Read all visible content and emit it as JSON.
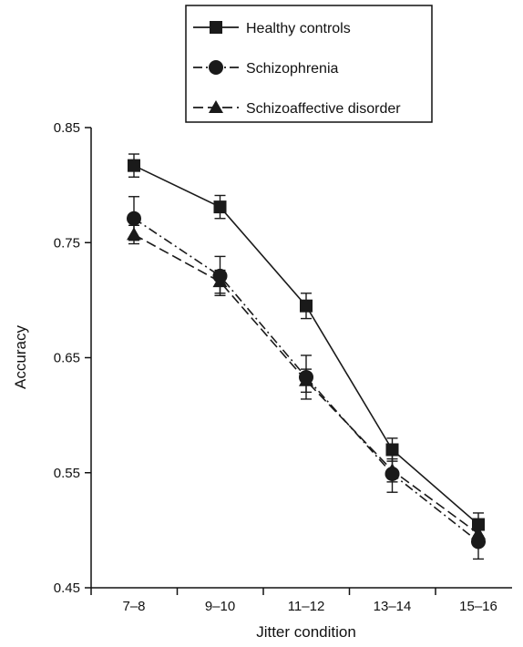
{
  "chart_data": {
    "type": "line",
    "categories": [
      "7–8",
      "9–10",
      "11–12",
      "13–14",
      "15–16"
    ],
    "xlabel": "Jitter condition",
    "ylabel": "Accuracy",
    "ylim": [
      0.45,
      0.85
    ],
    "yticks": [
      0.45,
      0.55,
      0.65,
      0.75,
      0.85
    ],
    "grid": false,
    "legend_position": "top-center",
    "series": [
      {
        "name": "Healthy controls",
        "marker": "square",
        "line": "solid",
        "values": [
          0.817,
          0.781,
          0.695,
          0.57,
          0.505
        ],
        "errors": [
          0.01,
          0.01,
          0.011,
          0.01,
          0.01
        ]
      },
      {
        "name": "Schizophrenia",
        "marker": "circle",
        "line": "dash-dot",
        "values": [
          0.771,
          0.721,
          0.633,
          0.549,
          0.49
        ],
        "errors": [
          0.019,
          0.017,
          0.019,
          0.016,
          0.015
        ]
      },
      {
        "name": "Schizoaffective disorder",
        "marker": "triangle",
        "line": "dashed",
        "values": [
          0.757,
          0.716,
          0.63,
          0.552,
          0.497
        ],
        "errors": [
          0.008,
          0.01,
          0.01,
          0.01,
          0.01
        ]
      }
    ]
  }
}
